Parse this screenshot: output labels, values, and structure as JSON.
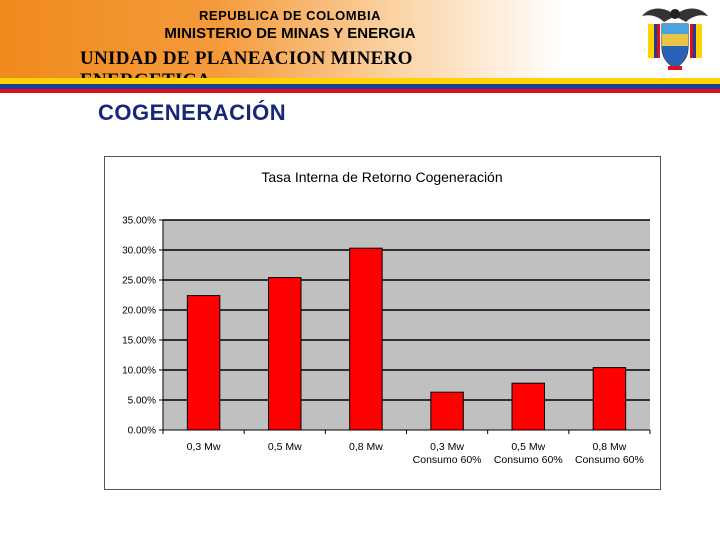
{
  "header": {
    "line1": "REPUBLICA DE COLOMBIA",
    "line2": "MINISTERIO DE MINAS Y ENERGIA",
    "line3": "UNIDAD DE PLANEACION MINERO ENERGETICA"
  },
  "page_title": "COGENERACIÓN",
  "colors": {
    "banner_orange": "#f08a1c",
    "flag_yellow": "#ffd200",
    "flag_blue": "#1d3d9c",
    "flag_red": "#d9121a",
    "title_blue": "#17287a",
    "bar_red": "#ff0000",
    "plot_gray": "#c0c0c0"
  },
  "icons": {
    "emblem": "colombia-coat-of-arms-icon"
  },
  "chart_data": {
    "type": "bar",
    "title": "Tasa Interna de Retorno Cogeneración",
    "categories": [
      [
        "0,3 Mw",
        ""
      ],
      [
        "0,5 Mw",
        ""
      ],
      [
        "0,8 Mw",
        ""
      ],
      [
        "0,3 Mw",
        "Consumo 60%"
      ],
      [
        "0,5 Mw",
        "Consumo 60%"
      ],
      [
        "0,8 Mw",
        "Consumo 60%"
      ]
    ],
    "values": [
      0.224,
      0.254,
      0.303,
      0.063,
      0.078,
      0.104
    ],
    "ylim": [
      0,
      0.35
    ],
    "yticks": [
      0,
      0.05,
      0.1,
      0.15,
      0.2,
      0.25,
      0.3,
      0.35
    ],
    "ytick_labels": [
      "0.00%",
      "5.00%",
      "10.00%",
      "15.00%",
      "20.00%",
      "25.00%",
      "30.00%",
      "35.00%"
    ],
    "grid": true,
    "legend": "none"
  }
}
